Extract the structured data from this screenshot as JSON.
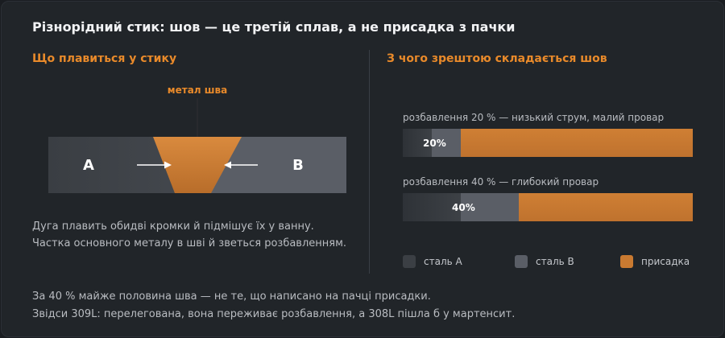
{
  "title": "Різнорідний стик: шов — це третій сплав, а не присадка з пачки",
  "left": {
    "heading": "Що плавиться у стику",
    "weld_label": "метал шва",
    "plate_a": "A",
    "plate_b": "B",
    "note_1": "Дуга плавить обидві кромки й підмішує їх у ванну.",
    "note_2": "Частка основного металу в шві й зветься розбавленням."
  },
  "right": {
    "heading": "З чого зрештою складається шов",
    "bars": [
      {
        "label": "розбавлення 20 % — низький струм, малий провар",
        "value_label": "20%",
        "steel_a": 10,
        "steel_b": 10,
        "filler": 80
      },
      {
        "label": "розбавлення 40 % — глибокий провар",
        "value_label": "40%",
        "steel_a": 20,
        "steel_b": 20,
        "filler": 60
      }
    ],
    "legend": [
      {
        "label": "сталь A",
        "color": "#3b3f44"
      },
      {
        "label": "сталь B",
        "color": "#5a5e66"
      },
      {
        "label": "присадка",
        "color": "#c97a31"
      }
    ]
  },
  "footer": {
    "line_1": "За 40 % майже половина шва — не те, що написано на пачці присадки.",
    "line_2": "Звідси 309L: перелегована, вона переживає розбавлення, а 308L пішла б у мартенсит."
  },
  "colors": {
    "accent": "#e98a2a",
    "plate_a": "#3b3f44",
    "plate_b": "#5a5e66",
    "filler": "#c97a31"
  }
}
